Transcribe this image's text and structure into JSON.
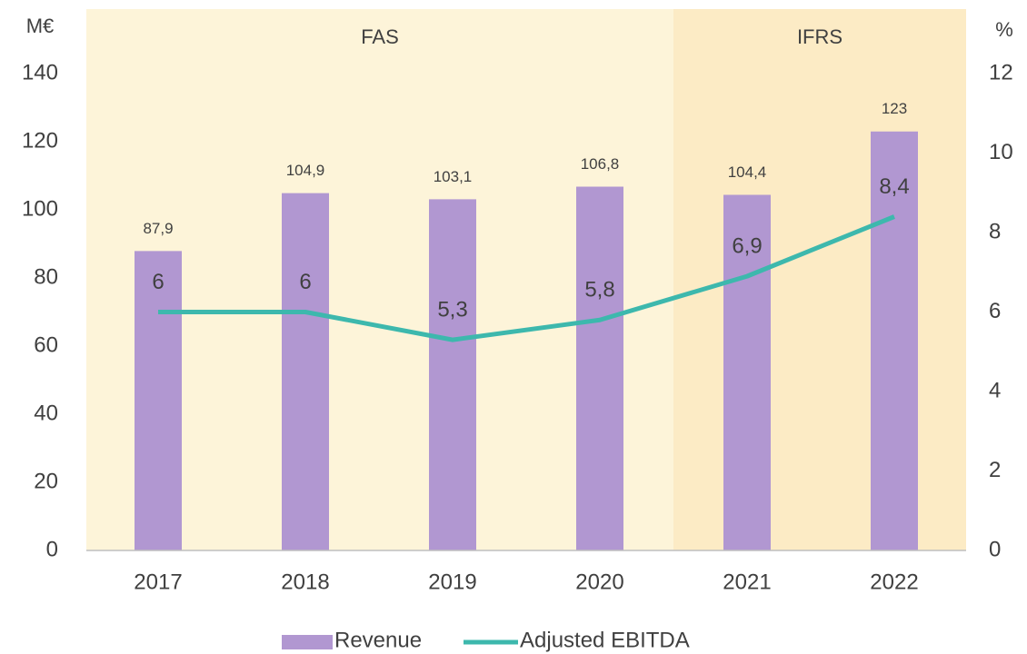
{
  "chart_data": {
    "type": "combo",
    "y_unit": "M€",
    "y2_unit": "%",
    "categories": [
      "2017",
      "2018",
      "2019",
      "2020",
      "2021",
      "2022"
    ],
    "regions": [
      {
        "label": "FAS",
        "from": "2017",
        "to": "2020",
        "color": "#fdf4d9"
      },
      {
        "label": "IFRS",
        "from": "2021",
        "to": "2022",
        "color": "#fcebc5"
      }
    ],
    "series": [
      {
        "name": "Revenue",
        "type": "bar",
        "color": "#b197d1",
        "values": [
          87.9,
          104.9,
          103.1,
          106.8,
          104.4,
          123
        ],
        "value_labels": [
          "87,9",
          "104,9",
          "103,1",
          "106,8",
          "104,4",
          "123"
        ]
      },
      {
        "name": "Adjusted EBITDA",
        "type": "line",
        "axis": "y2",
        "color": "#3db8ad",
        "values": [
          6,
          6,
          5.3,
          5.8,
          6.9,
          8.4
        ],
        "value_labels": [
          "6",
          "6",
          "5,3",
          "5,8",
          "6,9",
          "8,4"
        ]
      }
    ],
    "ylim": [
      0,
      140
    ],
    "yticks": [
      0,
      20,
      40,
      60,
      80,
      100,
      120,
      140
    ],
    "y2lim": [
      0,
      12
    ],
    "y2ticks": [
      0,
      2,
      4,
      6,
      8,
      10,
      12
    ],
    "grid": false,
    "legend": "bottom"
  }
}
